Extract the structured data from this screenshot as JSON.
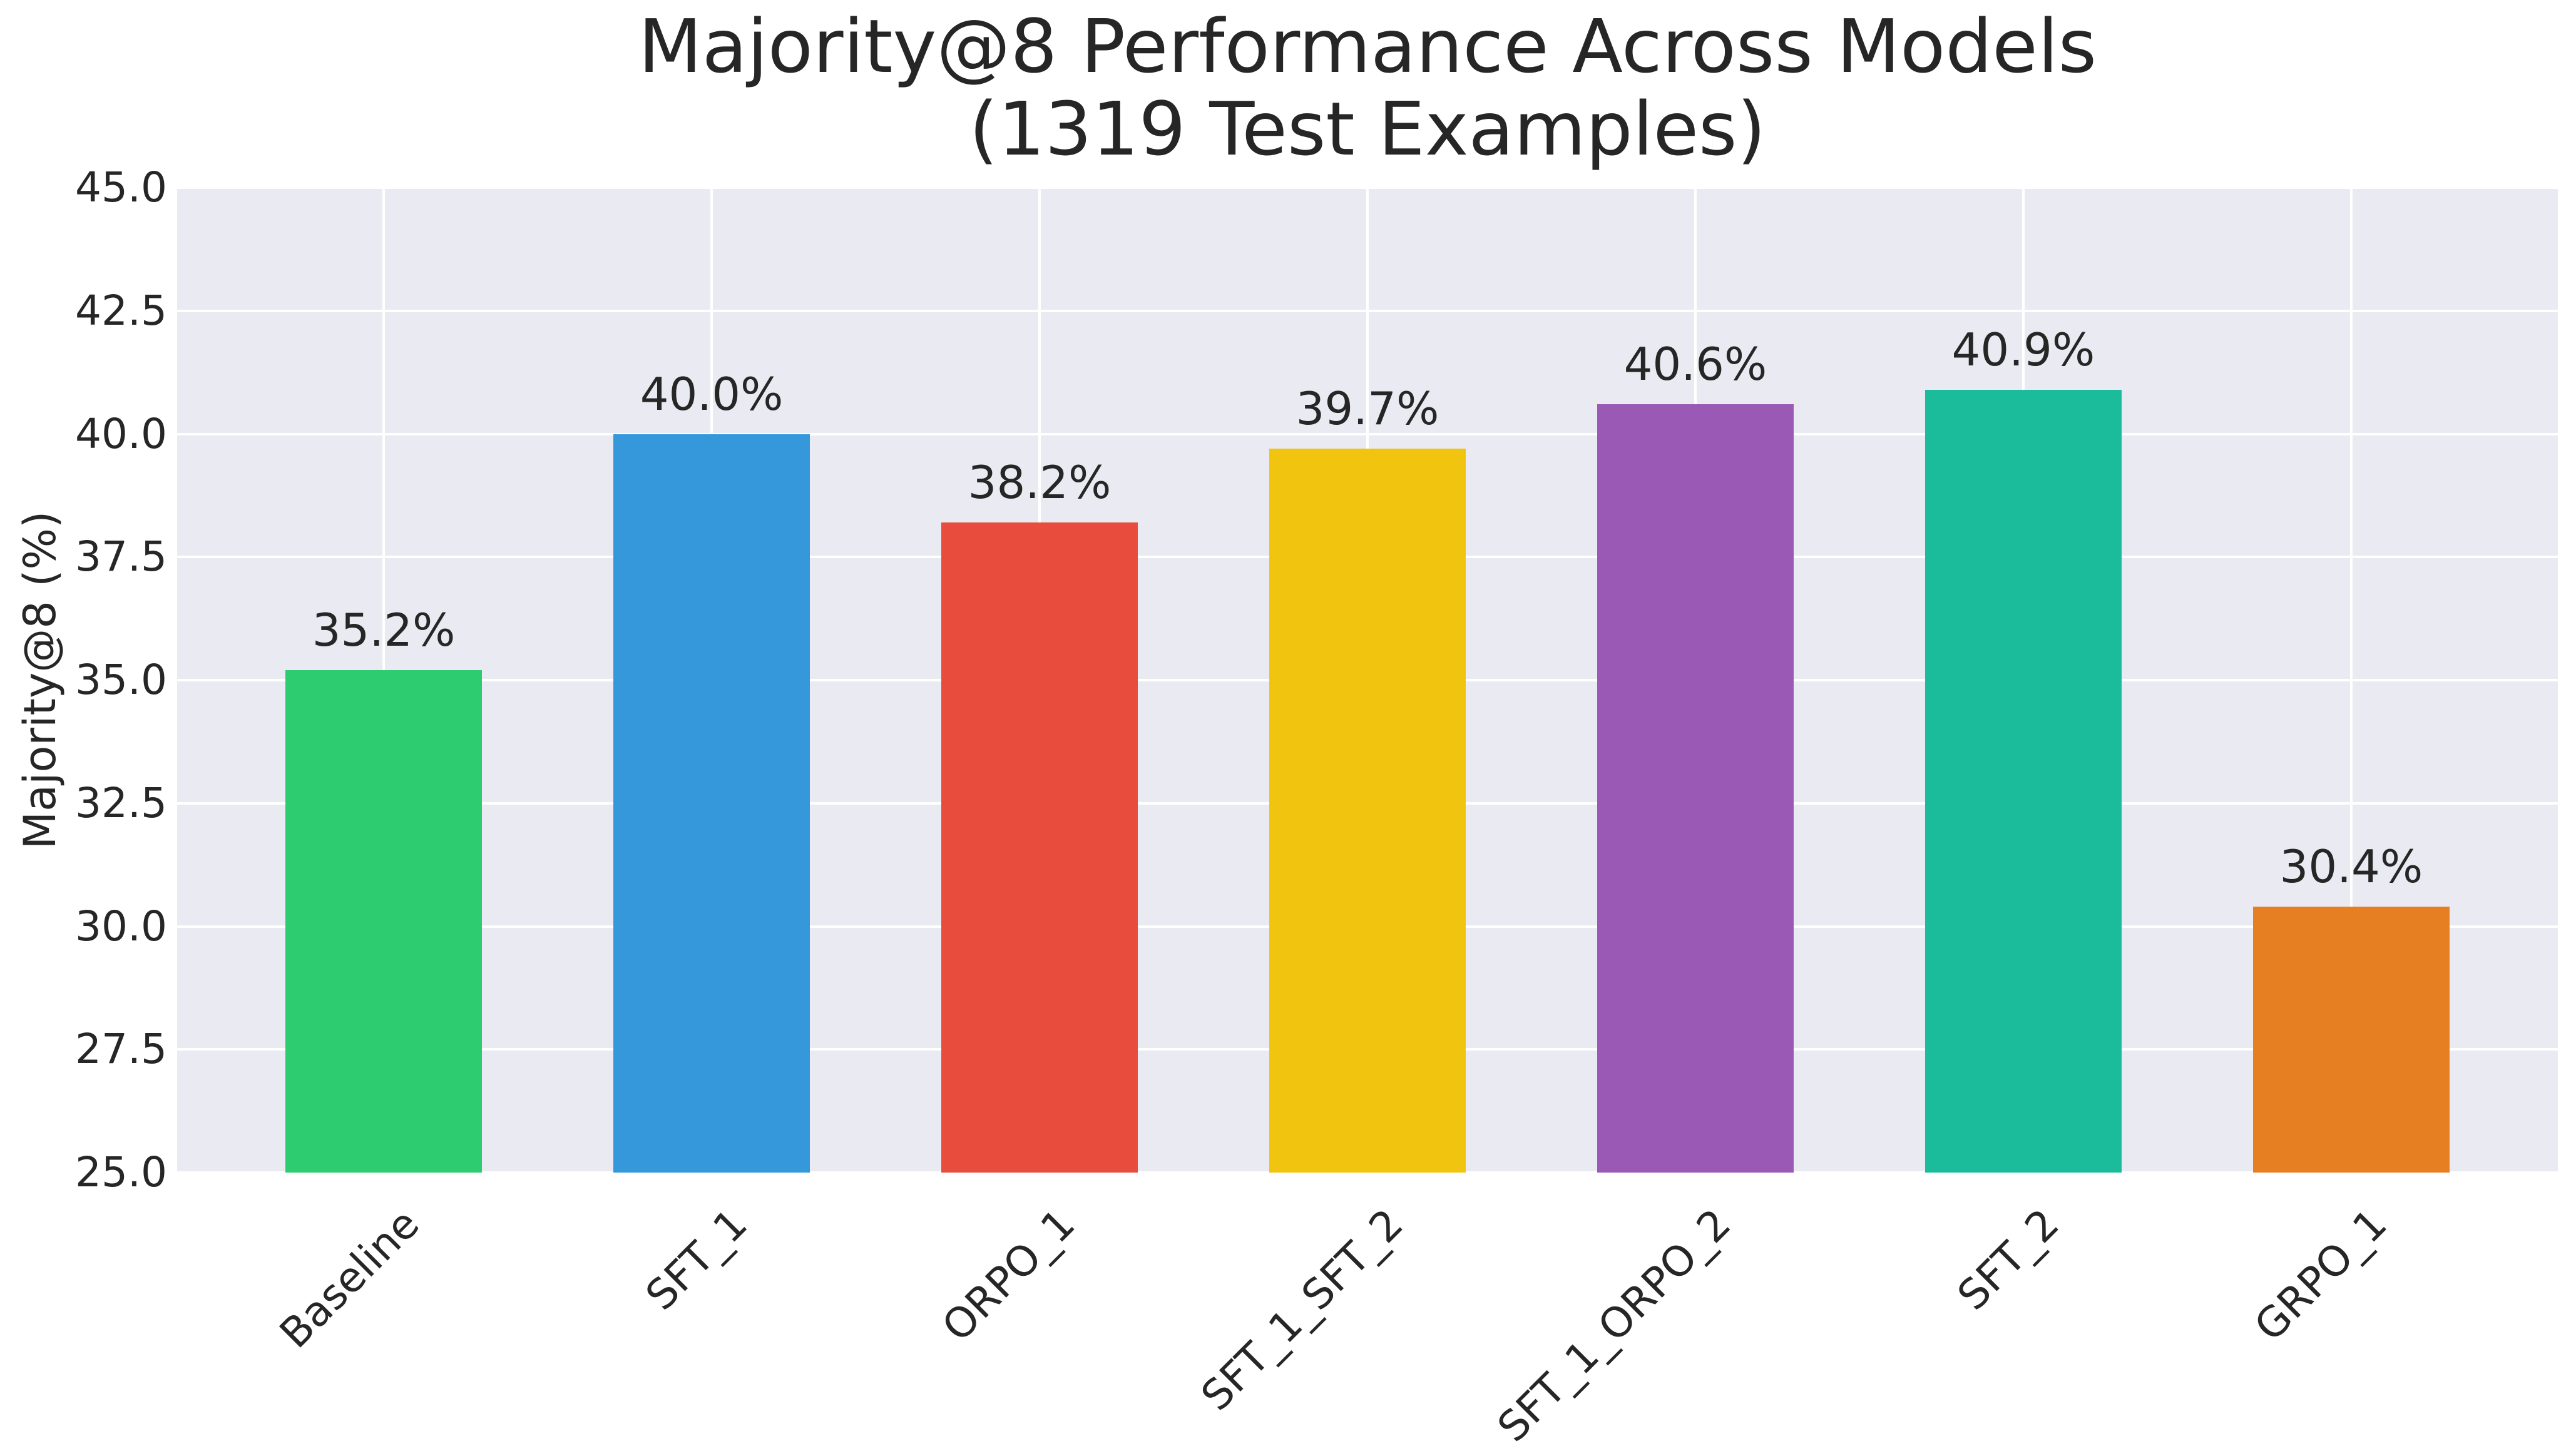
{
  "title": {
    "line1": "Majority@8 Performance Across Models",
    "line2": "(1319 Test Examples)"
  },
  "chart_data": {
    "type": "bar",
    "title": "Majority@8 Performance Across Models (1319 Test Examples)",
    "xlabel": "",
    "ylabel": "Majority@8 (%)",
    "ylim": [
      25.0,
      45.0
    ],
    "grid": true,
    "legend_position": "none",
    "plot_background_color": "#eaeaf2",
    "grid_color": "#ffffff",
    "text_color": "#262626",
    "categories": [
      "Baseline",
      "SFT_1",
      "ORPO_1",
      "SFT_1_SFT_2",
      "SFT_1_ORPO_2",
      "SFT_2",
      "GRPO_1"
    ],
    "values": [
      35.2,
      40.0,
      38.2,
      39.7,
      40.6,
      40.9,
      30.4
    ],
    "bar_value_labels": [
      "35.2%",
      "40.0%",
      "38.2%",
      "39.7%",
      "40.6%",
      "40.9%",
      "30.4%"
    ],
    "bar_colors": [
      "#2ecc71",
      "#3498db",
      "#e74c3c",
      "#f1c40f",
      "#9b59b6",
      "#1abc9c",
      "#e67e22"
    ],
    "yticks": [
      {
        "value": 25.0,
        "label": "25.0"
      },
      {
        "value": 27.5,
        "label": "27.5"
      },
      {
        "value": 30.0,
        "label": "30.0"
      },
      {
        "value": 32.5,
        "label": "32.5"
      },
      {
        "value": 35.0,
        "label": "35.0"
      },
      {
        "value": 37.5,
        "label": "37.5"
      },
      {
        "value": 40.0,
        "label": "40.0"
      },
      {
        "value": 42.5,
        "label": "42.5"
      },
      {
        "value": 45.0,
        "label": "45.0"
      }
    ]
  }
}
